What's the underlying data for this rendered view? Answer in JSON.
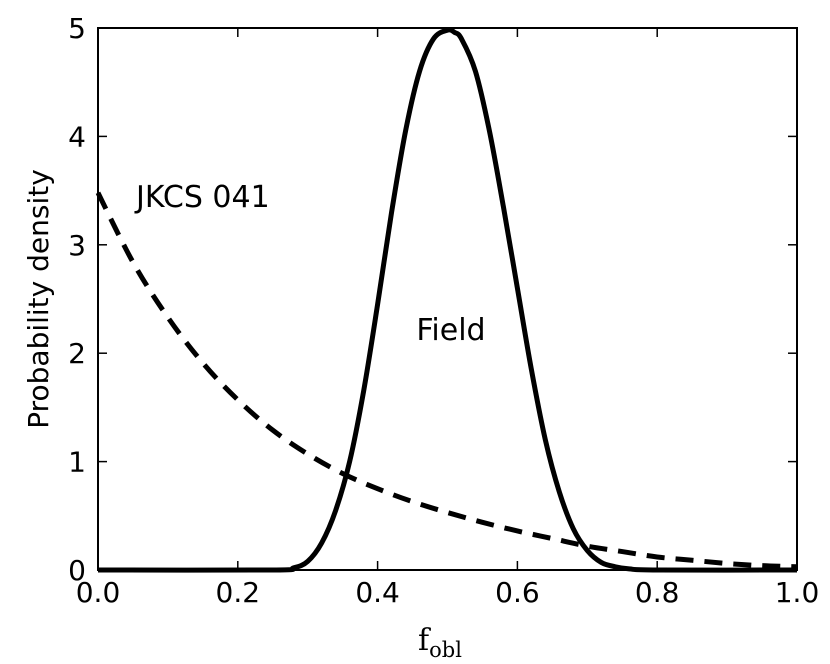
{
  "chart_data": {
    "type": "line",
    "title": "",
    "xlabel": "f",
    "xlabel_subscript": "obl",
    "ylabel": "Probability density",
    "xlim": [
      0.0,
      1.0
    ],
    "ylim": [
      0,
      5
    ],
    "xticks": [
      "0.0",
      "0.2",
      "0.4",
      "0.6",
      "0.8",
      "1.0"
    ],
    "yticks": [
      "0",
      "1",
      "2",
      "3",
      "4",
      "5"
    ],
    "grid": false,
    "series": [
      {
        "name": "Field",
        "style": "solid",
        "color": "#000000",
        "x": [
          0.0,
          0.25,
          0.28,
          0.3,
          0.32,
          0.34,
          0.36,
          0.38,
          0.4,
          0.42,
          0.44,
          0.46,
          0.48,
          0.5,
          0.51,
          0.52,
          0.54,
          0.56,
          0.58,
          0.6,
          0.62,
          0.64,
          0.66,
          0.68,
          0.7,
          0.72,
          0.74,
          0.76,
          0.8,
          1.0
        ],
        "y": [
          0.0,
          0.0,
          0.02,
          0.08,
          0.25,
          0.55,
          1.0,
          1.65,
          2.45,
          3.3,
          4.05,
          4.6,
          4.9,
          4.98,
          4.96,
          4.9,
          4.6,
          4.05,
          3.35,
          2.6,
          1.85,
          1.2,
          0.72,
          0.38,
          0.18,
          0.07,
          0.03,
          0.01,
          0.0,
          0.0
        ]
      },
      {
        "name": "JKCS 041",
        "style": "dashed",
        "color": "#000000",
        "x": [
          0.0,
          0.05,
          0.1,
          0.15,
          0.2,
          0.25,
          0.3,
          0.35,
          0.4,
          0.45,
          0.5,
          0.55,
          0.6,
          0.65,
          0.7,
          0.75,
          0.8,
          0.85,
          0.9,
          0.95,
          1.0
        ],
        "y": [
          3.48,
          2.84,
          2.33,
          1.91,
          1.57,
          1.29,
          1.07,
          0.89,
          0.75,
          0.63,
          0.53,
          0.44,
          0.36,
          0.29,
          0.22,
          0.17,
          0.12,
          0.09,
          0.06,
          0.04,
          0.03
        ]
      }
    ],
    "annotations": [
      {
        "text": "JKCS 041",
        "x": 0.15,
        "y": 3.35
      },
      {
        "text": "Field",
        "x": 0.505,
        "y": 2.12
      }
    ]
  }
}
